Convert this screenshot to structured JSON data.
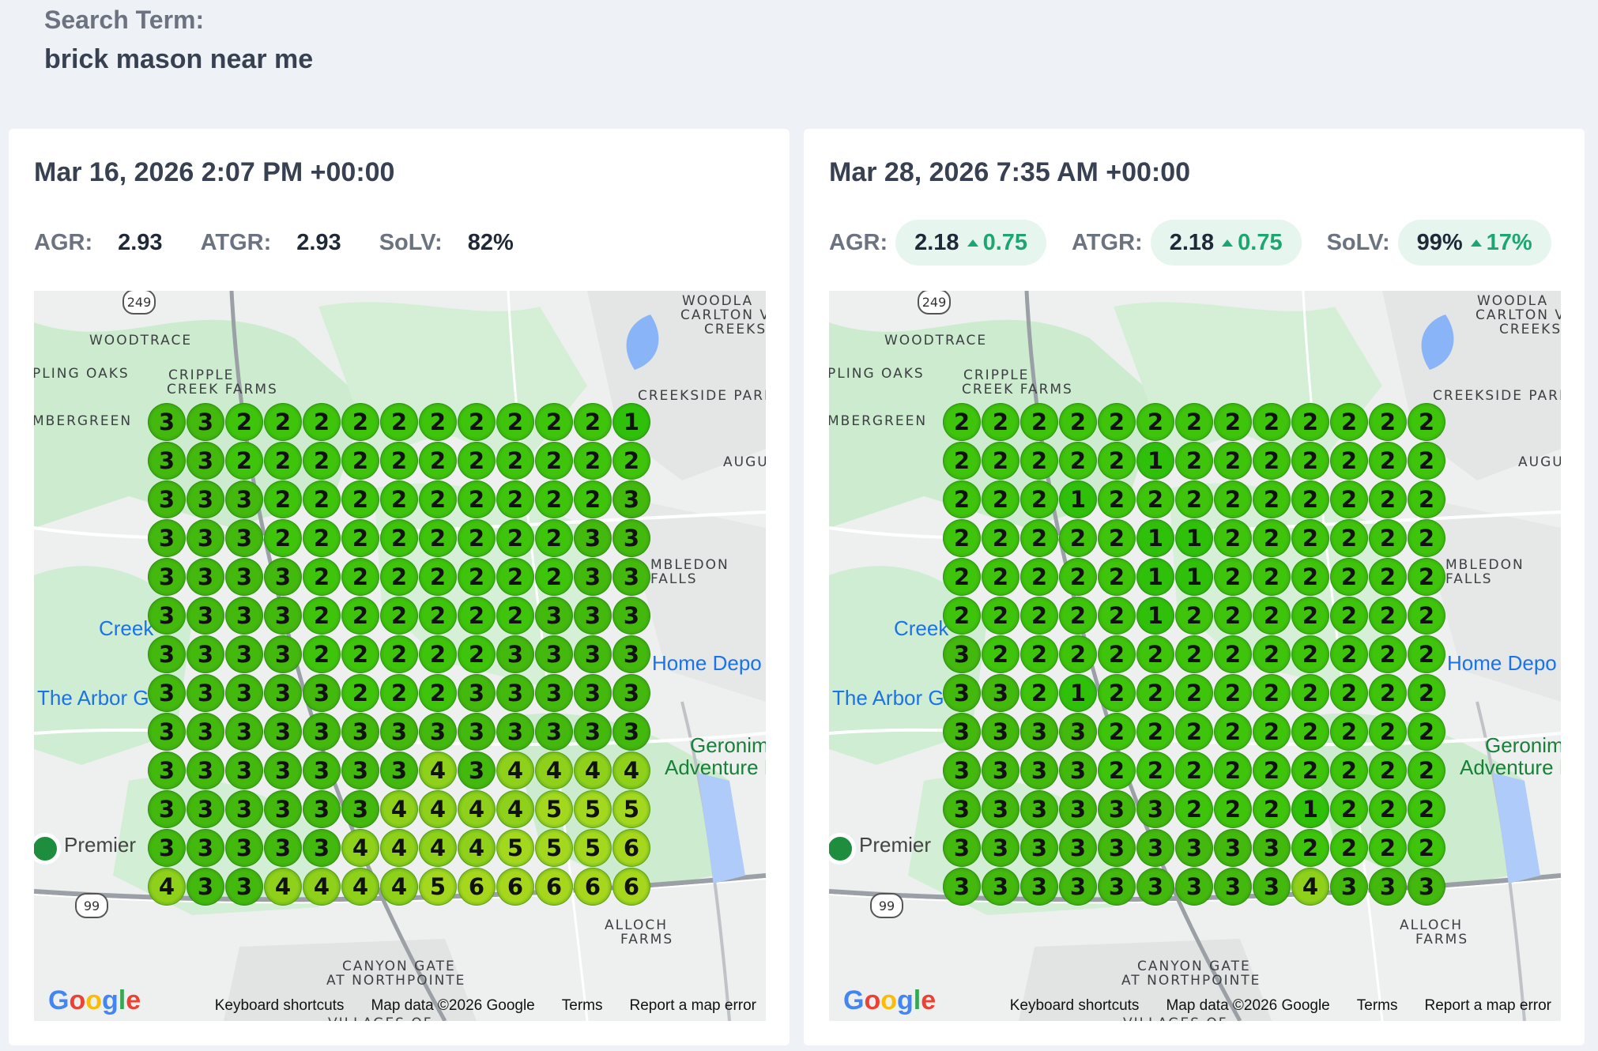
{
  "search": {
    "label": "Search Term:",
    "term": "brick mason near me"
  },
  "colors": {
    "rank1": "#2fc10a",
    "rank2": "#3ec40a",
    "rank3": "#43b80d",
    "rank4": "#8fd01a",
    "rank5": "#a3d81f",
    "rank6": "#a6d71c"
  },
  "map": {
    "places": [
      "WOODTRACE",
      "CRIPPLE",
      "CREEK FARMS",
      "PLING OAKS",
      "MBERGREEN",
      "WOODLA",
      "CARLTON V",
      "CREEKS",
      "CREEKSIDE PARK",
      "AUGU",
      "MBLEDON",
      "FALLS",
      "CANYON GATE",
      "AT NORTHPOINTE",
      "VILLAGES OF",
      "ALLOCH",
      "FARMS"
    ],
    "pois": [
      "Creek",
      "Home Depo",
      "The Arbor G",
      "Geronim",
      "Adventure Pa",
      "Premier"
    ],
    "roads": [
      "249",
      "99"
    ],
    "attribution": {
      "shortcuts": "Keyboard shortcuts",
      "data": "Map data ©2026 Google",
      "terms": "Terms",
      "report": "Report a map error"
    },
    "logo": "Google"
  },
  "panels": [
    {
      "date": "Mar 16, 2026 2:07 PM +00:00",
      "metrics": [
        {
          "label": "AGR:",
          "value": "2.93"
        },
        {
          "label": "ATGR:",
          "value": "2.93"
        },
        {
          "label": "SoLV:",
          "value": "82%"
        }
      ],
      "grid": [
        [
          3,
          3,
          2,
          2,
          2,
          2,
          2,
          2,
          2,
          2,
          2,
          2,
          1
        ],
        [
          3,
          3,
          2,
          2,
          2,
          2,
          2,
          2,
          2,
          2,
          2,
          2,
          2
        ],
        [
          3,
          3,
          3,
          2,
          2,
          2,
          2,
          2,
          2,
          2,
          2,
          2,
          3
        ],
        [
          3,
          3,
          3,
          2,
          2,
          2,
          2,
          2,
          2,
          2,
          2,
          3,
          3
        ],
        [
          3,
          3,
          3,
          3,
          2,
          2,
          2,
          2,
          2,
          2,
          2,
          3,
          3
        ],
        [
          3,
          3,
          3,
          3,
          2,
          2,
          2,
          2,
          2,
          2,
          3,
          3,
          3
        ],
        [
          3,
          3,
          3,
          3,
          2,
          2,
          2,
          2,
          2,
          3,
          3,
          3,
          3
        ],
        [
          3,
          3,
          3,
          3,
          3,
          2,
          2,
          2,
          3,
          3,
          3,
          3,
          3
        ],
        [
          3,
          3,
          3,
          3,
          3,
          3,
          3,
          3,
          3,
          3,
          3,
          3,
          3
        ],
        [
          3,
          3,
          3,
          3,
          3,
          3,
          3,
          4,
          3,
          4,
          4,
          4,
          4
        ],
        [
          3,
          3,
          3,
          3,
          3,
          3,
          4,
          4,
          4,
          4,
          5,
          5,
          5
        ],
        [
          3,
          3,
          3,
          3,
          3,
          4,
          4,
          4,
          4,
          5,
          5,
          5,
          6
        ],
        [
          4,
          3,
          3,
          4,
          4,
          4,
          4,
          5,
          6,
          6,
          6,
          6,
          6
        ]
      ]
    },
    {
      "date": "Mar 28, 2026 7:35 AM +00:00",
      "metrics": [
        {
          "label": "AGR:",
          "value": "2.18",
          "change": "0.75"
        },
        {
          "label": "ATGR:",
          "value": "2.18",
          "change": "0.75"
        },
        {
          "label": "SoLV:",
          "value": "99%",
          "change": "17%"
        }
      ],
      "grid": [
        [
          2,
          2,
          2,
          2,
          2,
          2,
          2,
          2,
          2,
          2,
          2,
          2,
          2
        ],
        [
          2,
          2,
          2,
          2,
          2,
          1,
          2,
          2,
          2,
          2,
          2,
          2,
          2
        ],
        [
          2,
          2,
          2,
          1,
          2,
          2,
          2,
          2,
          2,
          2,
          2,
          2,
          2
        ],
        [
          2,
          2,
          2,
          2,
          2,
          1,
          1,
          2,
          2,
          2,
          2,
          2,
          2
        ],
        [
          2,
          2,
          2,
          2,
          2,
          1,
          1,
          2,
          2,
          2,
          2,
          2,
          2
        ],
        [
          2,
          2,
          2,
          2,
          2,
          1,
          2,
          2,
          2,
          2,
          2,
          2,
          2
        ],
        [
          3,
          2,
          2,
          2,
          2,
          2,
          2,
          2,
          2,
          2,
          2,
          2,
          2
        ],
        [
          3,
          3,
          2,
          1,
          2,
          2,
          2,
          2,
          2,
          2,
          2,
          2,
          2
        ],
        [
          3,
          3,
          3,
          3,
          2,
          2,
          2,
          2,
          2,
          2,
          2,
          2,
          2
        ],
        [
          3,
          3,
          3,
          3,
          2,
          2,
          2,
          2,
          2,
          2,
          2,
          2,
          2
        ],
        [
          3,
          3,
          3,
          3,
          3,
          3,
          2,
          2,
          2,
          1,
          2,
          2,
          2
        ],
        [
          3,
          3,
          3,
          3,
          3,
          3,
          3,
          3,
          3,
          2,
          2,
          2,
          2
        ],
        [
          3,
          3,
          3,
          3,
          3,
          3,
          3,
          3,
          3,
          4,
          3,
          3,
          3
        ]
      ]
    }
  ]
}
